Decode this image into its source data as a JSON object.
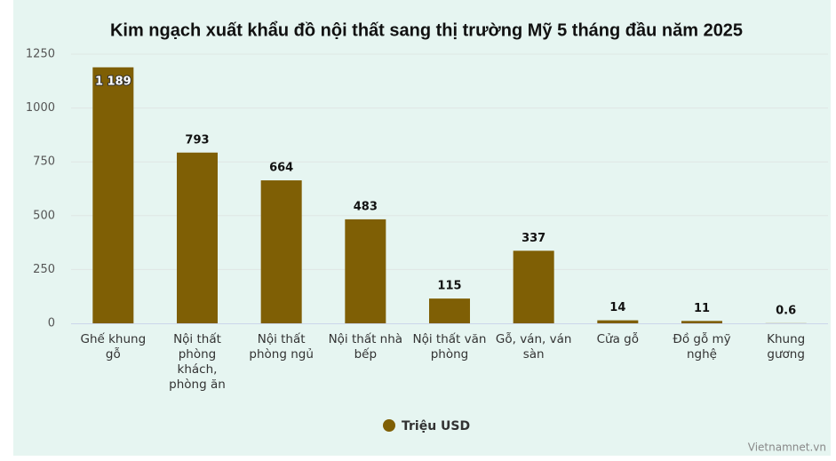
{
  "chart_data": {
    "type": "bar",
    "title": "Kim ngạch xuất khẩu đồ nội thất sang thị trường Mỹ 5 tháng đầu năm 2025",
    "categories": [
      "Ghế khung gỗ",
      "Nội thất phòng khách, phòng ăn",
      "Nội thất phòng ngủ",
      "Nội thất nhà bếp",
      "Nội thất văn phòng",
      "Gỗ, ván, ván sàn",
      "Cửa gỗ",
      "Đồ gỗ mỹ nghệ",
      "Khung gương"
    ],
    "series": [
      {
        "name": "Triệu USD",
        "color": "#7f5f05",
        "values": [
          1189,
          793,
          664,
          483,
          115,
          337,
          14,
          11,
          0.6
        ],
        "value_labels": [
          "1 189",
          "793",
          "664",
          "483",
          "115",
          "337",
          "14",
          "11",
          "0.6"
        ]
      }
    ],
    "ylim": [
      0,
      1250
    ],
    "yticks": [
      0,
      250,
      500,
      750,
      1000,
      1250
    ],
    "grid": true,
    "legend": "bottom",
    "source": "Vietnamnet.vn"
  }
}
